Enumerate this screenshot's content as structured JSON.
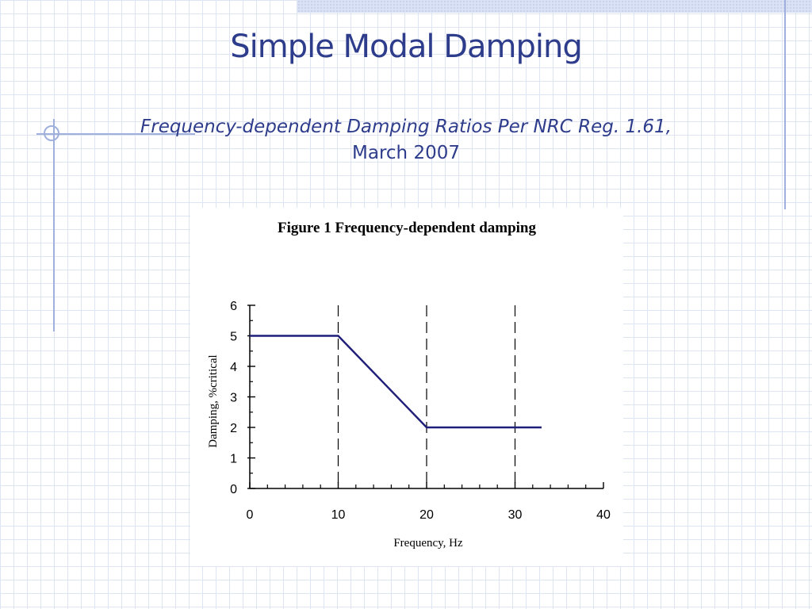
{
  "slide": {
    "title": "Simple Modal Damping",
    "subtitle_line1": "Frequency-dependent Damping Ratios Per NRC Reg. 1.61,",
    "subtitle_line2": "March 2007"
  },
  "colors": {
    "title": "#2e3c8c",
    "series_line": "#1f1f7a",
    "grid_background": "#dfe4f2",
    "decoration": "#9fb0dd"
  },
  "chart_data": {
    "type": "line",
    "title": "Figure 1 Frequency-dependent damping",
    "xlabel": "Frequency, Hz",
    "ylabel": "Damping, %critical",
    "xlim": [
      0,
      40
    ],
    "ylim": [
      0,
      6
    ],
    "x_ticks": [
      0,
      10,
      20,
      30,
      40
    ],
    "y_ticks": [
      0,
      1,
      2,
      3,
      4,
      5,
      6
    ],
    "x_minor_step": 2,
    "y_minor_step": 0.5,
    "reference_lines_x": [
      10,
      20,
      30
    ],
    "grid": false,
    "legend": "none",
    "series": [
      {
        "points": [
          {
            "x": 0,
            "y": 5
          },
          {
            "x": 10,
            "y": 5
          },
          {
            "x": 20,
            "y": 2
          },
          {
            "x": 33,
            "y": 2
          }
        ]
      }
    ]
  }
}
